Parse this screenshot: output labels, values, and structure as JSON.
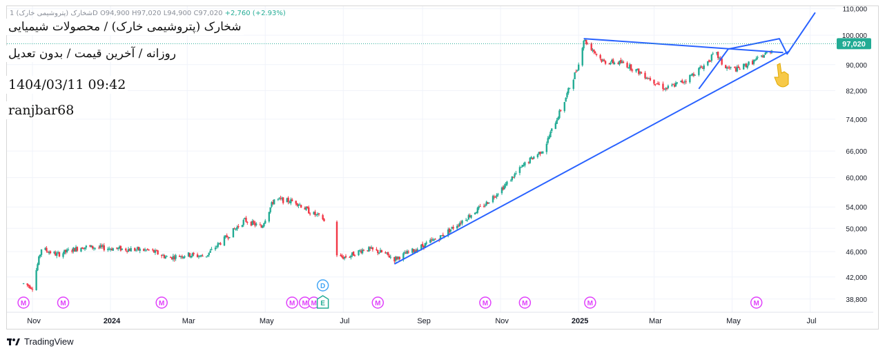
{
  "header": {
    "ohlc_prefix": "1 شخارک (پتروشیمی خارک)D",
    "open": "O94,900",
    "high": "H97,020",
    "low": "L94,900",
    "close": "C97,020",
    "change": "+2,760 (+2.93%)"
  },
  "overlay": {
    "title": "شخارک (پتروشیمی خارک) / محصولات شیمیایی",
    "subtitle": "روزانه / آخرین قیمت / بدون تعدیل",
    "datetime": "1404/03/11 09:42",
    "author": "ranjbar68"
  },
  "brand": {
    "name": "TradingView"
  },
  "colors": {
    "up": "#22ab94",
    "down": "#f23645",
    "drawing": "#2962ff",
    "price_tag": "#22ab94",
    "earnings": "#e040fb",
    "dividend": "#42a5f5",
    "hand": "#f7c948"
  },
  "chart_data": {
    "type": "candlestick",
    "interval": "1D",
    "scale": "log",
    "ylim": [
      37000,
      111000
    ],
    "y_ticks": [
      "110,000",
      "100,000",
      "90,000",
      "82,000",
      "74,000",
      "66,000",
      "60,000",
      "54,000",
      "50,000",
      "46,000",
      "42,000",
      "38,800"
    ],
    "x_ticks": [
      "Nov",
      "2024",
      "Mar",
      "May",
      "Jul",
      "Sep",
      "Nov",
      "2025",
      "Mar",
      "May",
      "Jul"
    ],
    "x_tick_bold": [
      false,
      true,
      false,
      false,
      false,
      false,
      false,
      true,
      false,
      false,
      false
    ],
    "last_price": "97,020",
    "price_path": [
      [
        "2023-10-25",
        41000
      ],
      [
        "2023-11-01",
        40500
      ],
      [
        "2023-11-08",
        46500
      ],
      [
        "2023-11-20",
        45500
      ],
      [
        "2023-12-10",
        46800
      ],
      [
        "2024-01-05",
        46500
      ],
      [
        "2024-02-01",
        46200
      ],
      [
        "2024-02-15",
        45000
      ],
      [
        "2024-03-01",
        45500
      ],
      [
        "2024-03-15",
        45200
      ],
      [
        "2024-04-01",
        48500
      ],
      [
        "2024-04-15",
        51500
      ],
      [
        "2024-04-28",
        50200
      ],
      [
        "2024-05-08",
        55500
      ],
      [
        "2024-05-25",
        55000
      ],
      [
        "2024-06-05",
        53000
      ],
      [
        "2024-06-15",
        51800
      ],
      [
        "2024-06-27",
        45000
      ],
      [
        "2024-07-05",
        45200
      ],
      [
        "2024-07-18",
        46500
      ],
      [
        "2024-08-01",
        45800
      ],
      [
        "2024-08-10",
        44800
      ],
      [
        "2024-08-25",
        46200
      ],
      [
        "2024-09-15",
        48500
      ],
      [
        "2024-10-01",
        51200
      ],
      [
        "2024-10-20",
        54500
      ],
      [
        "2024-11-05",
        58500
      ],
      [
        "2024-11-20",
        63000
      ],
      [
        "2024-12-05",
        66500
      ],
      [
        "2024-12-20",
        78000
      ],
      [
        "2025-01-01",
        90000
      ],
      [
        "2025-01-05",
        98500
      ],
      [
        "2025-01-20",
        91000
      ],
      [
        "2025-02-05",
        90500
      ],
      [
        "2025-02-20",
        87000
      ],
      [
        "2025-03-10",
        82500
      ],
      [
        "2025-03-25",
        85000
      ],
      [
        "2025-04-10",
        90000
      ],
      [
        "2025-04-18",
        94000
      ],
      [
        "2025-04-25",
        89000
      ],
      [
        "2025-05-05",
        88500
      ],
      [
        "2025-05-20",
        91500
      ],
      [
        "2025-06-01",
        94900
      ],
      [
        "2025-06-01",
        97020
      ]
    ],
    "gaps": [
      [
        "2024-06-17",
        "2024-06-25"
      ]
    ],
    "trendlines": [
      {
        "name": "support",
        "from": [
          "2024-08-10",
          44000
        ],
        "to": [
          "2025-06-15",
          94500
        ]
      },
      {
        "name": "resistance",
        "from": [
          "2025-01-05",
          98800
        ],
        "to": [
          "2025-06-10",
          94000
        ]
      },
      {
        "name": "projection",
        "points": [
          [
            "2025-04-05",
            82500
          ],
          [
            "2025-04-28",
            95200
          ],
          [
            "2025-06-07",
            98800
          ],
          [
            "2025-06-13",
            93500
          ],
          [
            "2025-07-05",
            108500
          ]
        ]
      }
    ],
    "earnings_markers": [
      "2023-10-25",
      "2023-11-25",
      "2024-02-10",
      "2024-05-22",
      "2024-06-01",
      "2024-06-08",
      "2024-07-28",
      "2024-10-20",
      "2024-11-20",
      "2025-01-10",
      "2025-05-20"
    ],
    "dividend_marker": "2024-06-15",
    "earnings_event_marker": "2024-06-15",
    "marker_labels": {
      "earnings": "M",
      "dividend": "D",
      "event": "E"
    }
  }
}
